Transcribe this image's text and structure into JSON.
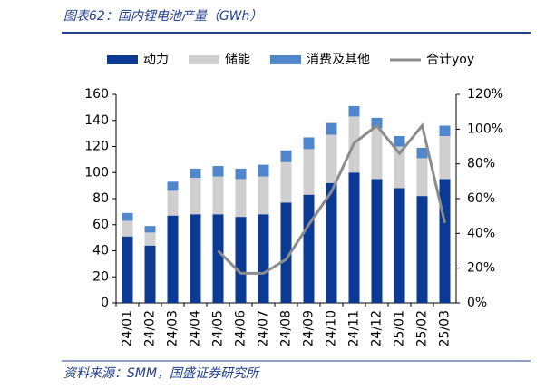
{
  "header": {
    "title": "图表62：国内锂电池产量（GWh）"
  },
  "chart_data": {
    "type": "bar",
    "stacked": true,
    "categories": [
      "24/01",
      "24/02",
      "24/03",
      "24/04",
      "24/05",
      "24/06",
      "24/07",
      "24/08",
      "24/09",
      "24/10",
      "24/11",
      "24/12",
      "25/01",
      "25/02",
      "25/03"
    ],
    "series": [
      {
        "name": "动力",
        "color": "#0b3a94",
        "values": [
          51,
          44,
          67,
          68,
          68,
          66,
          68,
          77,
          83,
          92,
          100,
          95,
          88,
          82,
          95
        ]
      },
      {
        "name": "储能",
        "color": "#cfcfcf",
        "values": [
          12,
          10,
          19,
          28,
          29,
          29,
          29,
          31,
          35,
          37,
          43,
          39,
          32,
          29,
          33
        ]
      },
      {
        "name": "消费及其他",
        "color": "#4f86cc",
        "values": [
          6,
          5,
          7,
          7,
          8,
          8,
          9,
          9,
          9,
          9,
          8,
          8,
          8,
          8,
          8
        ]
      },
      {
        "name": "合计yoy",
        "color": "#8c8c8c",
        "type": "line",
        "axis": "y2",
        "values": [
          null,
          null,
          null,
          null,
          30,
          17,
          17,
          25,
          45,
          64,
          92,
          102,
          86,
          102,
          46
        ]
      }
    ],
    "ylim": [
      0,
      160
    ],
    "yticks": [
      0,
      20,
      40,
      60,
      80,
      100,
      120,
      140,
      160
    ],
    "y2lim": [
      0,
      120
    ],
    "y2ticks": [
      {
        "value": 0,
        "label": "0%"
      },
      {
        "value": 20,
        "label": "20%"
      },
      {
        "value": 40,
        "label": "40%"
      },
      {
        "value": 60,
        "label": "60%"
      },
      {
        "value": 80,
        "label": "80%"
      },
      {
        "value": 100,
        "label": "100%"
      },
      {
        "value": 120,
        "label": "120%"
      }
    ],
    "legend": "top"
  },
  "footer": {
    "source": "资料来源：SMM，国盛证券研究所"
  }
}
